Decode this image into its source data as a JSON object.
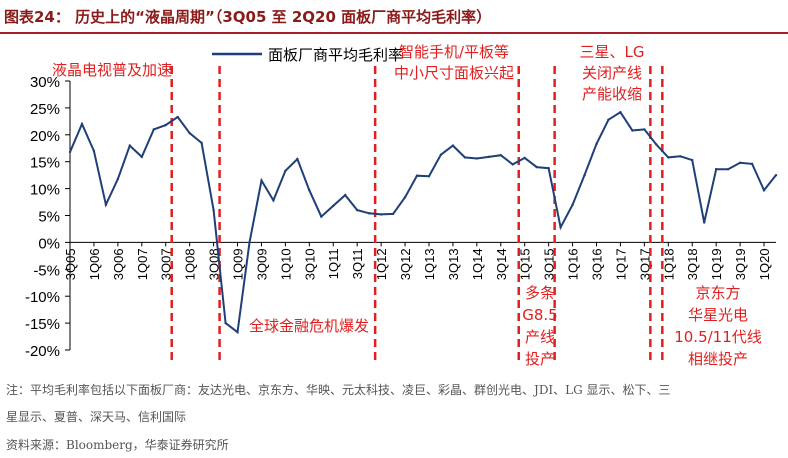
{
  "header": {
    "title": "图表24：  历史上的“液晶周期”（3Q05 至 2Q20 面板厂商平均毛利率）"
  },
  "chart_data": {
    "type": "line",
    "title": "",
    "xlabel": "",
    "ylabel": "",
    "ylim": [
      -20,
      30
    ],
    "yticks": [
      "30%",
      "25%",
      "20%",
      "15%",
      "10%",
      "5%",
      "0%",
      "-5%",
      "-10%",
      "-15%",
      "-20%"
    ],
    "grid": false,
    "legend_position": "top-left",
    "x": [
      "3Q05",
      "4Q05",
      "1Q06",
      "2Q06",
      "3Q06",
      "4Q06",
      "1Q07",
      "2Q07",
      "3Q07",
      "4Q07",
      "1Q08",
      "2Q08",
      "3Q08",
      "4Q08",
      "1Q09",
      "2Q09",
      "3Q09",
      "4Q09",
      "1Q10",
      "2Q10",
      "3Q10",
      "4Q10",
      "1Q11",
      "2Q11",
      "3Q11",
      "4Q11",
      "1Q12",
      "2Q12",
      "3Q12",
      "4Q12",
      "1Q13",
      "2Q13",
      "3Q13",
      "4Q13",
      "1Q14",
      "2Q14",
      "3Q14",
      "4Q14",
      "1Q15",
      "2Q15",
      "3Q15",
      "4Q15",
      "1Q16",
      "2Q16",
      "3Q16",
      "4Q16",
      "1Q17",
      "2Q17",
      "3Q17",
      "4Q17",
      "1Q18",
      "2Q18",
      "3Q18",
      "4Q18",
      "1Q19",
      "2Q19",
      "3Q19",
      "4Q19",
      "1Q20",
      "2Q20"
    ],
    "x_tick_labels": [
      "3Q05",
      "1Q06",
      "3Q06",
      "1Q07",
      "3Q07",
      "1Q08",
      "3Q08",
      "1Q09",
      "3Q09",
      "1Q10",
      "3Q10",
      "1Q11",
      "3Q11",
      "1Q12",
      "3Q12",
      "1Q13",
      "3Q13",
      "1Q14",
      "3Q14",
      "1Q15",
      "3Q15",
      "1Q16",
      "3Q16",
      "1Q17",
      "3Q17",
      "1Q18",
      "3Q18",
      "1Q19",
      "3Q19",
      "1Q20"
    ],
    "series": [
      {
        "name": "面板厂商平均毛利率",
        "color": "#1f3f78",
        "values": [
          16.8,
          22.0,
          17.0,
          7.0,
          11.8,
          18.0,
          15.9,
          21.0,
          21.8,
          23.3,
          20.3,
          18.5,
          6.0,
          -15.0,
          -16.7,
          0.0,
          11.5,
          7.8,
          13.3,
          15.5,
          9.7,
          4.8,
          6.8,
          8.8,
          6.0,
          5.4,
          5.2,
          5.3,
          8.4,
          12.4,
          12.3,
          16.3,
          18.0,
          15.8,
          15.6,
          15.9,
          16.2,
          14.5,
          15.7,
          14.0,
          13.8,
          2.8,
          7.0,
          12.5,
          18.3,
          22.8,
          24.2,
          20.8,
          21.0,
          18.2,
          15.8,
          16.0,
          15.3,
          3.7,
          13.6,
          13.6,
          14.8,
          14.6,
          9.7,
          12.5
        ]
      }
    ],
    "event_lines": [
      {
        "after": "3Q07",
        "label_lines": [
          "液晶电视普及加速"
        ]
      },
      {
        "after": "3Q08",
        "label_lines": [
          "全球金融危机爆发"
        ]
      },
      {
        "after": "4Q11",
        "label_lines": [
          "智能手机/平板等",
          "中小尺寸面板兴起"
        ]
      },
      {
        "after": "4Q14",
        "label_lines": [
          "多条",
          "G8.5",
          "产线",
          "投产"
        ]
      },
      {
        "after": "3Q15",
        "label_lines": []
      },
      {
        "after": "3Q17",
        "label_lines": [
          "三星、LG",
          "关闭产线",
          "产能收缩"
        ]
      },
      {
        "after": "",
        "label_lines": [
          "京东方",
          "华星光电",
          "10.5/11代线",
          "相继投产"
        ]
      }
    ],
    "event_color": "#e02020"
  },
  "notes": {
    "line1": "注：平均毛利率包括以下面板厂商：友达光电、京东方、华映、元太科技、凌巨、彩晶、群创光电、JDI、LG 显示、松下、三",
    "line2": "星显示、夏普、深天马、信利国际",
    "source": "资料来源：Bloomberg，华泰证券研究所"
  }
}
